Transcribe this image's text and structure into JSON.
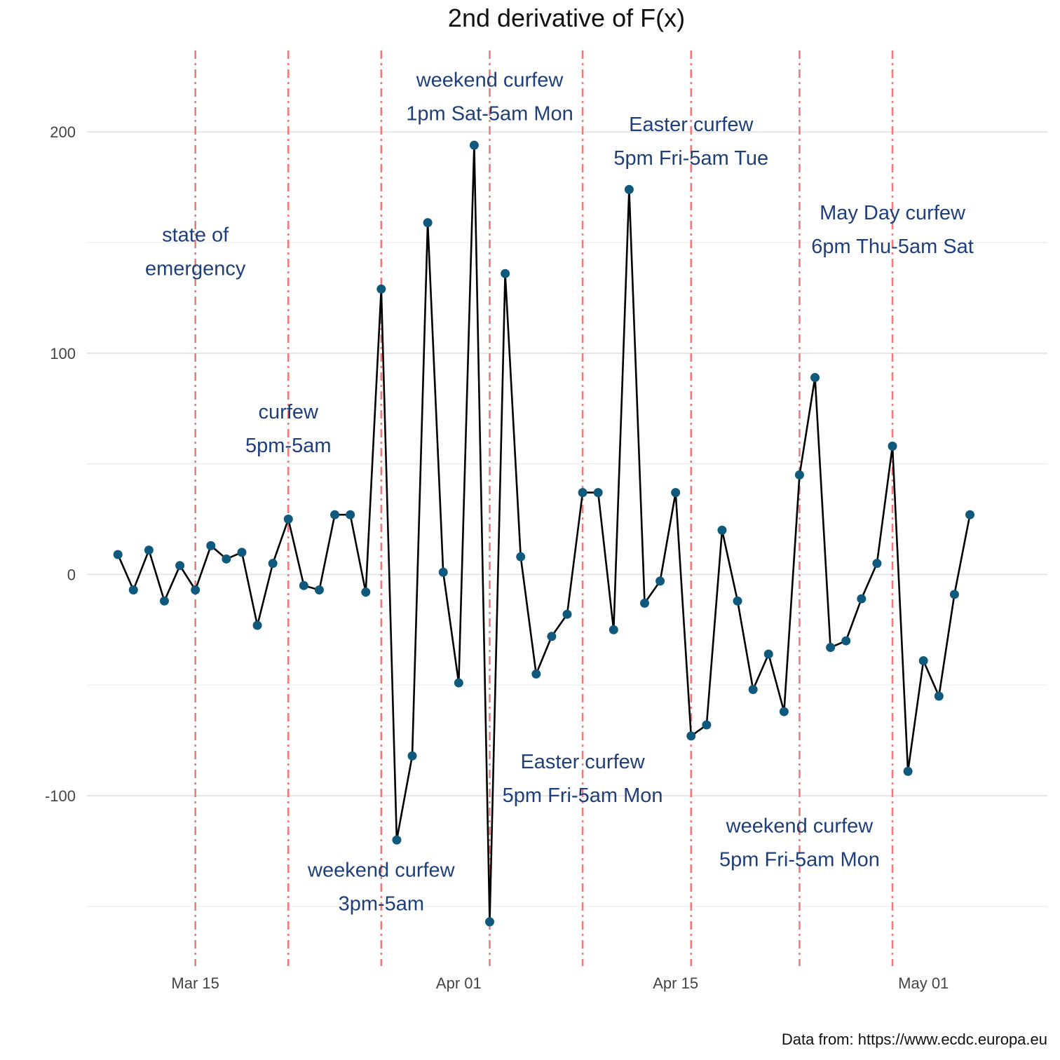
{
  "chart_data": {
    "type": "line",
    "title": "2nd derivative of F(x)",
    "caption": "Data from: https://www.ecdc.europa.eu",
    "xlabel": "",
    "ylabel": "",
    "x_start": "2020-03-10",
    "x_step_days": 1,
    "xlim": [
      "2020-03-08",
      "2020-05-09"
    ],
    "ylim": [
      -177,
      240
    ],
    "grid": true,
    "x_ticks": [
      {
        "date": "2020-03-15",
        "label": "Mar 15"
      },
      {
        "date": "2020-04-01",
        "label": "Apr 01"
      },
      {
        "date": "2020-04-15",
        "label": "Apr 15"
      },
      {
        "date": "2020-05-01",
        "label": "May 01"
      }
    ],
    "y_ticks": [
      {
        "value": -100,
        "label": "-100"
      },
      {
        "value": 0,
        "label": "0"
      },
      {
        "value": 100,
        "label": "100"
      },
      {
        "value": 200,
        "label": "200"
      }
    ],
    "y_minor": [
      -150,
      -50,
      50,
      150
    ],
    "series": [
      {
        "values": [
          9,
          -7,
          11,
          -12,
          4,
          -7,
          13,
          7,
          10,
          -23,
          5,
          25,
          -5,
          -7,
          27,
          27,
          -8,
          129,
          -120,
          -82,
          159,
          1,
          -49,
          194,
          -157,
          136,
          8,
          -45,
          -28,
          -18,
          37,
          37,
          -25,
          174,
          -13,
          -3,
          37,
          -73,
          -68,
          20,
          -12,
          -52,
          -36,
          -62,
          45,
          89,
          -33,
          -30,
          -11,
          5,
          58,
          -89,
          -39,
          -55,
          -9,
          27
        ],
        "color": "#000000",
        "point_color": "#0f5a7c"
      }
    ],
    "events": [
      {
        "date": "2020-03-15",
        "lines": [
          "state of",
          "emergency"
        ],
        "label_y": 146
      },
      {
        "date": "2020-03-21",
        "lines": [
          "curfew",
          "5pm-5am"
        ],
        "label_y": 66
      },
      {
        "date": "2020-03-27",
        "lines": [
          "weekend curfew",
          "3pm-5am"
        ],
        "label_y": -141
      },
      {
        "date": "2020-04-03",
        "lines": [
          "weekend curfew",
          "1pm Sat-5am Mon"
        ],
        "label_y": 216
      },
      {
        "date": "2020-04-09",
        "lines": [
          "Easter curfew",
          "5pm Fri-5am Mon"
        ],
        "label_y": -92
      },
      {
        "date": "2020-04-16",
        "lines": [
          "Easter curfew",
          "5pm Fri-5am Tue"
        ],
        "label_y": 196
      },
      {
        "date": "2020-04-23",
        "lines": [
          "weekend curfew",
          "5pm Fri-5am Mon"
        ],
        "label_y": -121
      },
      {
        "date": "2020-04-29",
        "lines": [
          "May Day curfew",
          "6pm Thu-5am Sat"
        ],
        "label_y": 156
      }
    ],
    "colors": {
      "line": "#000000",
      "point": "#0f5a7c",
      "event_line": "#f07a7a",
      "annotation": "#1f3f7a"
    }
  }
}
